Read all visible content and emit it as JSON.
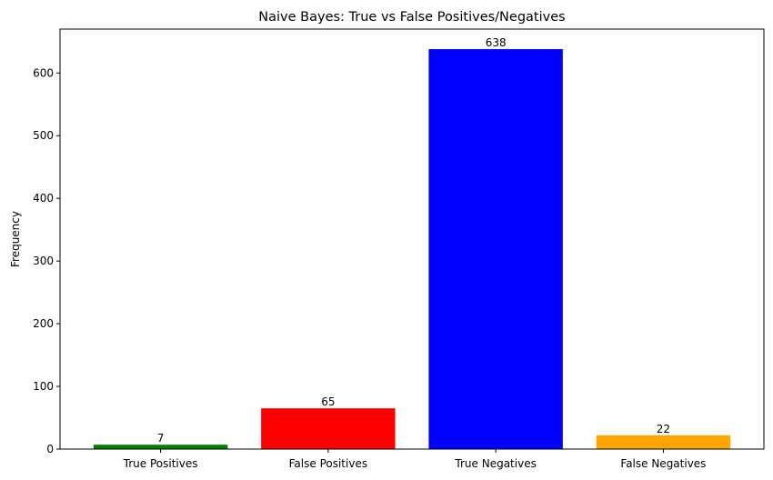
{
  "chart_data": {
    "type": "bar",
    "title": "Naive Bayes: True vs False Positives/Negatives",
    "xlabel": "",
    "ylabel": "Frequency",
    "categories": [
      "True Positives",
      "False Positives",
      "True Negatives",
      "False Negatives"
    ],
    "values": [
      7,
      65,
      638,
      22
    ],
    "colors": [
      "#008000",
      "#ff0000",
      "#0000ff",
      "#ffa500"
    ],
    "ylim": [
      0,
      670
    ],
    "yticks": [
      0,
      100,
      200,
      300,
      400,
      500,
      600
    ],
    "grid": false,
    "legend": "none"
  }
}
